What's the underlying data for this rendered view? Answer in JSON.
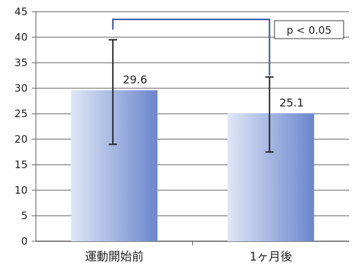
{
  "chart_data": {
    "type": "bar",
    "title": "",
    "xlabel": "",
    "ylabel": "",
    "ylim": [
      0,
      45
    ],
    "yticks": [
      0,
      5,
      10,
      15,
      20,
      25,
      30,
      35,
      40,
      45
    ],
    "grid": true,
    "categories": [
      "運動開始前",
      "1ヶ月後"
    ],
    "values": [
      29.6,
      25.1
    ],
    "value_labels": [
      "29.6",
      "25.1"
    ],
    "error_bars": [
      {
        "low": 19.0,
        "high": 39.5
      },
      {
        "low": 17.5,
        "high": 32.2
      }
    ],
    "significance": {
      "label": "p < 0.05",
      "bracket_y": 43.5
    }
  },
  "colors": {
    "bar_light": "#dfe6f6",
    "bar_dark": "#6b86cd",
    "grid": "#555555",
    "bracket": "#3b5ea8",
    "error": "#222222"
  }
}
